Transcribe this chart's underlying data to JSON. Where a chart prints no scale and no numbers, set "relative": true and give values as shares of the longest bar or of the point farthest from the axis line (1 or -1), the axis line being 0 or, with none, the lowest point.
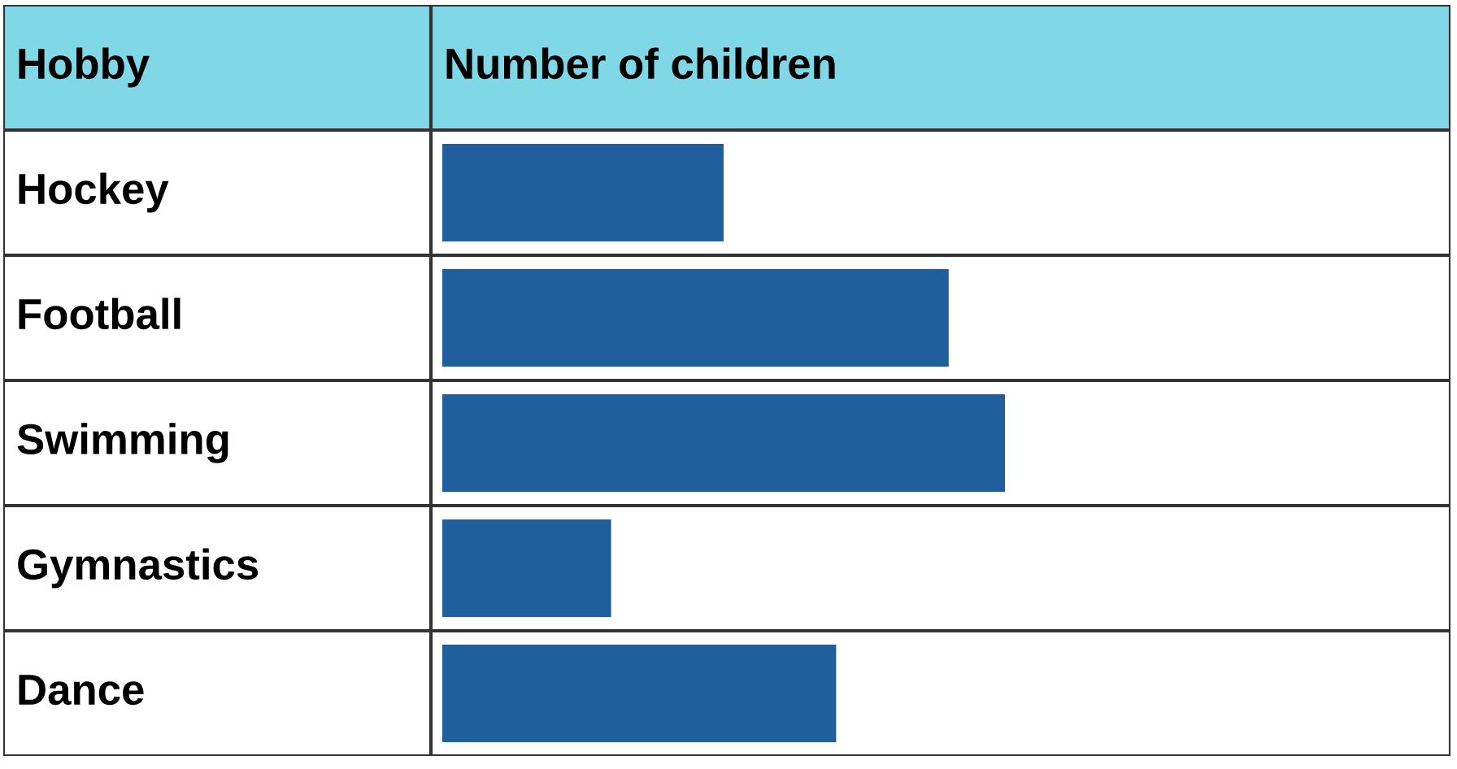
{
  "chart_data": {
    "type": "bar",
    "orientation": "horizontal",
    "relative": true,
    "ylabel": "Hobby",
    "xlabel": "Number of children",
    "categories": [
      "Hockey",
      "Football",
      "Swimming",
      "Gymnastics",
      "Dance"
    ],
    "values": [
      0.5,
      0.9,
      1,
      0.3,
      0.7
    ],
    "color": "#1f5f9e"
  }
}
